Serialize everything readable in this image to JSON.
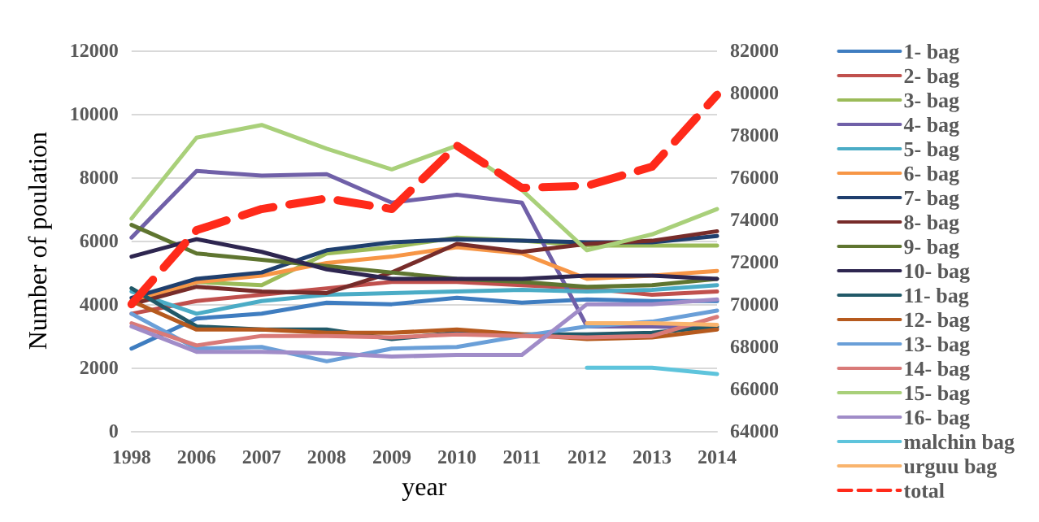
{
  "chart_data": {
    "type": "line",
    "xlabel": "year",
    "ylabel": "Number of poulation",
    "categories": [
      "1998",
      "2006",
      "2007",
      "2008",
      "2009",
      "2010",
      "2011",
      "2012",
      "2013",
      "2014"
    ],
    "ylim": [
      0,
      12000
    ],
    "yticks": [
      0,
      2000,
      4000,
      6000,
      8000,
      10000,
      12000
    ],
    "y2lim": [
      64000,
      82000
    ],
    "y2ticks": [
      64000,
      66000,
      68000,
      70000,
      72000,
      74000,
      76000,
      78000,
      80000,
      82000
    ],
    "grid": "y",
    "legend": "right",
    "marker": "none",
    "line_style": "solid",
    "series": [
      {
        "name": "1- bag",
        "color": "#3f7dc0",
        "values": [
          2600,
          3550,
          3700,
          4050,
          4000,
          4200,
          4050,
          4150,
          4100,
          4100
        ]
      },
      {
        "name": "2- bag",
        "color": "#c0504d",
        "values": [
          3700,
          4100,
          4300,
          4500,
          4700,
          4700,
          4600,
          4500,
          4300,
          4400
        ]
      },
      {
        "name": "3- bag",
        "color": "#9bbb59",
        "values": [
          4000,
          4700,
          4600,
          5600,
          5800,
          6100,
          6000,
          5850,
          5850,
          5850
        ]
      },
      {
        "name": "4- bag",
        "color": "#7060a8",
        "values": [
          6100,
          8200,
          8050,
          8100,
          7200,
          7450,
          7200,
          3300,
          3300,
          3250
        ]
      },
      {
        "name": "5- bag",
        "color": "#4bacc6",
        "values": [
          4400,
          3700,
          4100,
          4300,
          4350,
          4400,
          4450,
          4400,
          4450,
          4600
        ]
      },
      {
        "name": "6- bag",
        "color": "#f79646",
        "values": [
          4100,
          4700,
          4900,
          5300,
          5500,
          5800,
          5600,
          4800,
          4900,
          5050
        ]
      },
      {
        "name": "7- bag",
        "color": "#1f3f6e",
        "values": [
          4200,
          4800,
          5000,
          5700,
          5950,
          6050,
          6000,
          5950,
          5950,
          6150
        ]
      },
      {
        "name": "8- bag",
        "color": "#772c2a",
        "values": [
          4000,
          4550,
          4400,
          4350,
          5000,
          5900,
          5650,
          5900,
          6000,
          6300
        ]
      },
      {
        "name": "9- bag",
        "color": "#5f7530",
        "values": [
          6500,
          5600,
          5400,
          5200,
          5000,
          4800,
          4700,
          4550,
          4600,
          4800
        ]
      },
      {
        "name": "10- bag",
        "color": "#2e2650",
        "values": [
          5500,
          6050,
          5650,
          5100,
          4800,
          4800,
          4800,
          4900,
          4900,
          4800
        ]
      },
      {
        "name": "11- bag",
        "color": "#215968",
        "values": [
          4500,
          3300,
          3200,
          3200,
          2900,
          3100,
          3050,
          3050,
          3100,
          3300
        ]
      },
      {
        "name": "12- bag",
        "color": "#b65a1e",
        "values": [
          4100,
          3200,
          3200,
          3100,
          3100,
          3200,
          3050,
          2900,
          2950,
          3200
        ]
      },
      {
        "name": "13- bag",
        "color": "#6a9fd8",
        "values": [
          3700,
          2600,
          2650,
          2200,
          2600,
          2650,
          3000,
          3300,
          3450,
          3800
        ]
      },
      {
        "name": "14- bag",
        "color": "#d97a78",
        "values": [
          3400,
          2700,
          3000,
          3000,
          2950,
          3050,
          3000,
          2950,
          3000,
          3600
        ]
      },
      {
        "name": "15- bag",
        "color": "#a9d07a",
        "values": [
          6700,
          9250,
          9650,
          8900,
          8250,
          9000,
          7600,
          5700,
          6200,
          7000
        ]
      },
      {
        "name": "16- bag",
        "color": "#a08cc8",
        "values": [
          3300,
          2500,
          2500,
          2450,
          2350,
          2400,
          2400,
          4000,
          4000,
          4150
        ]
      },
      {
        "name": "malchin bag",
        "color": "#5ec4dc",
        "values": [
          null,
          null,
          null,
          null,
          null,
          null,
          null,
          2000,
          2000,
          1800
        ]
      },
      {
        "name": "urguu bag",
        "color": "#f9b46d",
        "values": [
          null,
          null,
          null,
          null,
          null,
          null,
          null,
          3400,
          3400,
          3350
        ]
      },
      {
        "name": "total",
        "color": "#ff2a1a",
        "axis": "y2",
        "line_style": "dashed",
        "values": [
          70000,
          73500,
          74500,
          75000,
          74500,
          77500,
          75500,
          75600,
          76500,
          79900
        ]
      }
    ]
  }
}
